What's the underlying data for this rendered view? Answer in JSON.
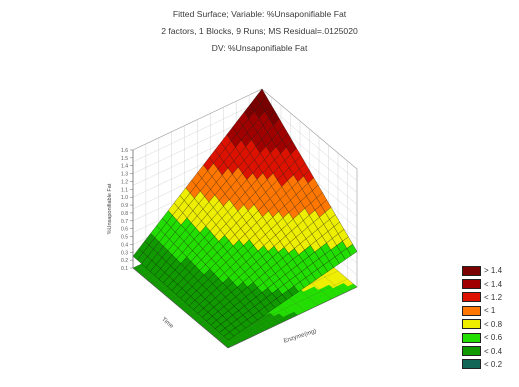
{
  "chart_data": {
    "type": "surface3d",
    "title": "Fitted Surface; Variable: %Unsaponifiable Fat",
    "subtitle": "2 factors, 1 Blocks, 9 Runs; MS Residual=.0125020",
    "dv_label": "DV: %Unsaponifiable Fat",
    "xlabel": "Time",
    "ylabel": "Enzyme(mg)",
    "zlabel": "%Unsaponifiable Fat",
    "x_range": [
      40,
      110
    ],
    "y_range": [
      50,
      150
    ],
    "z_range": [
      0.1,
      1.6
    ],
    "z_ticks": [
      "0.1",
      "0.2",
      "0.3",
      "0.4",
      "0.5",
      "0.6",
      "0.7",
      "0.8",
      "0.9",
      "1.0",
      "1.1",
      "1.2",
      "1.3",
      "1.4",
      "1.5",
      "1.6"
    ],
    "surface_corners": {
      "time_min_enzyme_min": 0.2,
      "time_max_enzyme_min": 0.25,
      "time_min_enzyme_max": 0.55,
      "time_max_enzyme_max": 1.6
    },
    "legend": [
      {
        "label": "> 1.4",
        "color": "#7a0000"
      },
      {
        "label": "< 1.4",
        "color": "#a00000"
      },
      {
        "label": "< 1.2",
        "color": "#dd1100"
      },
      {
        "label": "< 1",
        "color": "#ff7700"
      },
      {
        "label": "< 0.8",
        "color": "#eeee00"
      },
      {
        "label": "< 0.6",
        "color": "#22dd00"
      },
      {
        "label": "< 0.4",
        "color": "#119900"
      },
      {
        "label": "< 0.2",
        "color": "#116655"
      }
    ]
  }
}
